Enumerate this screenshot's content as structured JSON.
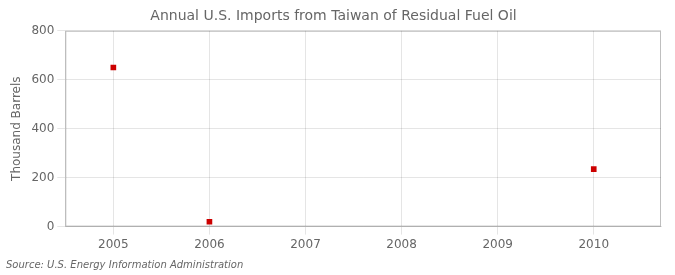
{
  "chart_data": {
    "type": "scatter",
    "title": "Annual U.S. Imports from Taiwan of Residual Fuel Oil",
    "ylabel": "Thousand Barrels",
    "annotations": [
      "Source: U.S. Energy Information Administration"
    ],
    "x": [
      2005,
      2006,
      2007,
      2008,
      2009,
      2010
    ],
    "values": [
      650,
      20,
      null,
      null,
      null,
      235
    ],
    "color": "#CC0000",
    "marker": "square",
    "xlim": [
      2004.5,
      2010.7
    ],
    "xticks": [
      2005,
      2006,
      2007,
      2008,
      2009,
      2010
    ],
    "ylim": [
      0,
      800
    ],
    "yticks": [
      0,
      200,
      400,
      600,
      800
    ],
    "grid": true
  }
}
